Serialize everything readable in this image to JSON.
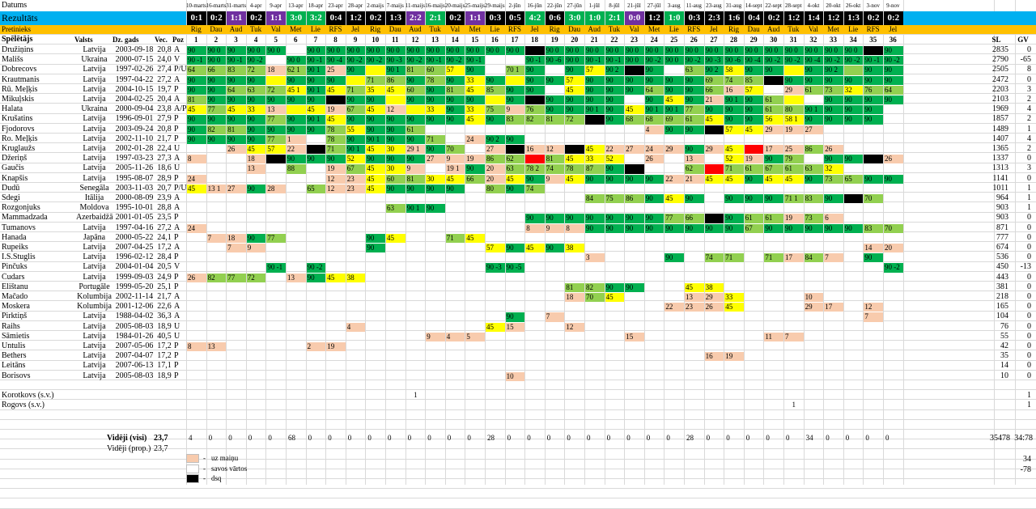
{
  "sheet": {
    "header": {
      "datums_label": "Datums",
      "rezultats_label": "Rezultāts",
      "pretinieks_label": "Pretinieks",
      "dates": [
        "10-marts",
        "16-marts",
        "31-marts",
        "4-apr",
        "9-apr",
        "13-apr",
        "18-apr",
        "23-apr",
        "28-apr",
        "2-maijs",
        "7-maijs",
        "11-maijs",
        "16-maijs",
        "20-maijs",
        "25-maijs",
        "29-maijs",
        "2-jūn",
        "16-jūn",
        "22-jūn",
        "27-jūn",
        "1-jūl",
        "8-jūl",
        "21-jūl",
        "27-jūl",
        "3-aug",
        "11-aug",
        "23-aug",
        "31-aug",
        "14-sept",
        "22-sept",
        "28-sept",
        "4-okt",
        "20-okt",
        "26-okt",
        "3-nov",
        "9-nov"
      ],
      "scores": [
        "0:1",
        "0:2",
        "1:1",
        "0:2",
        "1:1",
        "3:0",
        "3:2",
        "0:4",
        "1:2",
        "0:2",
        "1:3",
        "2:2",
        "2:1",
        "0:2",
        "1:1",
        "0:3",
        "0:5",
        "4:2",
        "0:6",
        "3:0",
        "1:0",
        "2:1",
        "0:0",
        "1:2",
        "1:0",
        "0:3",
        "2:3",
        "1:6",
        "0:4",
        "0:2",
        "1:2",
        "1:4",
        "1:2",
        "1:3",
        "0:2",
        "0:2"
      ],
      "score_colors": [
        "#000000",
        "#000000",
        "#7030a0",
        "#000000",
        "#7030a0",
        "#00b050",
        "#00b050",
        "#000000",
        "#000000",
        "#000000",
        "#000000",
        "#7030a0",
        "#00b050",
        "#000000",
        "#7030a0",
        "#000000",
        "#000000",
        "#00b050",
        "#000000",
        "#00b050",
        "#00b050",
        "#00b050",
        "#7030a0",
        "#000000",
        "#00b050",
        "#000000",
        "#000000",
        "#000000",
        "#000000",
        "#000000",
        "#000000",
        "#000000",
        "#000000",
        "#000000",
        "#000000",
        "#000000"
      ],
      "opponents": [
        "Rig",
        "Dau",
        "Aud",
        "Tuk",
        "Val",
        "Met",
        "Lie",
        "RFS",
        "Jel",
        "Rig",
        "Dau",
        "Aud",
        "Tuk",
        "Val",
        "Met",
        "Lie",
        "RFS",
        "Jel",
        "Rig",
        "Dau",
        "Aud",
        "Tuk",
        "Val",
        "Met",
        "Lie",
        "RFS",
        "Jel",
        "Rig",
        "Dau",
        "Aud",
        "Tuk",
        "Val",
        "Met",
        "Lie",
        "RFS",
        "Jel"
      ],
      "col_player": "Spēlētājs",
      "col_country": "Valsts",
      "col_birth": "Dz. gads",
      "col_age": "Vec.",
      "col_pos": "Poz",
      "col_sl": "SL",
      "col_gv": "GV"
    },
    "players": [
      {
        "name": "Družiņins",
        "country": "Latvija",
        "birth": "2003-09-18",
        "age": "20,8",
        "pos": "A",
        "sl": "2835",
        "gv": "0"
      },
      {
        "name": "Mališs",
        "country": "Ukraina",
        "birth": "2000-07-15",
        "age": "24,0",
        "pos": "V",
        "sl": "2790",
        "gv": "-65"
      },
      {
        "name": "Dobrecovs",
        "country": "Latvija",
        "birth": "1997-02-26",
        "age": "27,4",
        "pos": "P/U",
        "sl": "2505",
        "gv": "8"
      },
      {
        "name": "Krautmanis",
        "country": "Latvija",
        "birth": "1997-04-22",
        "age": "27,2",
        "pos": "A",
        "sl": "2472",
        "gv": "0"
      },
      {
        "name": "Rū. Meļķis",
        "country": "Latvija",
        "birth": "2004-10-15",
        "age": "19,7",
        "pos": "P",
        "sl": "2203",
        "gv": "3"
      },
      {
        "name": "Mikuļskis",
        "country": "Latvija",
        "birth": "2004-02-25",
        "age": "20,4",
        "pos": "A",
        "sl": "2103",
        "gv": "2"
      },
      {
        "name": "Halata",
        "country": "Ukraina",
        "birth": "2000-09-04",
        "age": "23,8",
        "pos": "A/P",
        "sl": "1969",
        "gv": "4"
      },
      {
        "name": "Krušatins",
        "country": "Latvija",
        "birth": "1996-09-01",
        "age": "27,9",
        "pos": "P",
        "sl": "1857",
        "gv": "2"
      },
      {
        "name": "Fjodorovs",
        "country": "Latvija",
        "birth": "2003-09-24",
        "age": "20,8",
        "pos": "P",
        "sl": "1489",
        "gv": "1"
      },
      {
        "name": "Ro. Meļķis",
        "country": "Latvija",
        "birth": "2002-11-10",
        "age": "21,7",
        "pos": "P",
        "sl": "1407",
        "gv": "4"
      },
      {
        "name": "Kruglaužs",
        "country": "Latvija",
        "birth": "2002-01-28",
        "age": "22,4",
        "pos": "U",
        "sl": "1365",
        "gv": "2"
      },
      {
        "name": "Džeriņš",
        "country": "Latvija",
        "birth": "1997-03-23",
        "age": "27,3",
        "pos": "A",
        "sl": "1337",
        "gv": "0"
      },
      {
        "name": "Gaučis",
        "country": "Latvija",
        "birth": "2005-11-26",
        "age": "18,6",
        "pos": "U",
        "sl": "1313",
        "gv": "3"
      },
      {
        "name": "Knapšis",
        "country": "Latvija",
        "birth": "1995-08-07",
        "age": "28,9",
        "pos": "P",
        "sl": "1141",
        "gv": "0"
      },
      {
        "name": "Dudū",
        "country": "Senegāla",
        "birth": "2003-11-03",
        "age": "20,7",
        "pos": "P/U",
        "sl": "1011",
        "gv": "1"
      },
      {
        "name": "Sdegi",
        "country": "Itālija",
        "birth": "2000-08-09",
        "age": "23,9",
        "pos": "A",
        "sl": "964",
        "gv": "1"
      },
      {
        "name": "Rozgonjuks",
        "country": "Moldova",
        "birth": "1995-10-01",
        "age": "28,8",
        "pos": "A",
        "sl": "903",
        "gv": "1"
      },
      {
        "name": "Mammadzada",
        "country": "Azerbaidžāna",
        "birth": "2001-01-05",
        "age": "23,5",
        "pos": "P",
        "sl": "903",
        "gv": "0"
      },
      {
        "name": "Tumanovs",
        "country": "Latvija",
        "birth": "1997-04-16",
        "age": "27,2",
        "pos": "A",
        "sl": "871",
        "gv": "0"
      },
      {
        "name": "Hanada",
        "country": "Japāna",
        "birth": "2000-05-22",
        "age": "24,1",
        "pos": "P",
        "sl": "777",
        "gv": "0"
      },
      {
        "name": "Rupeiks",
        "country": "Latvija",
        "birth": "2007-04-25",
        "age": "17,2",
        "pos": "A",
        "sl": "674",
        "gv": "0"
      },
      {
        "name": "I.S.Stuglis",
        "country": "Latvija",
        "birth": "1996-02-12",
        "age": "28,4",
        "pos": "P",
        "sl": "536",
        "gv": "0"
      },
      {
        "name": "Pinčuks",
        "country": "Latvija",
        "birth": "2004-01-04",
        "age": "20,5",
        "pos": "V",
        "sl": "450",
        "gv": "-13"
      },
      {
        "name": "Čudars",
        "country": "Latvija",
        "birth": "1999-09-03",
        "age": "24,9",
        "pos": "P",
        "sl": "443",
        "gv": "0"
      },
      {
        "name": "Elištanu",
        "country": "Portugāle",
        "birth": "1999-05-20",
        "age": "25,1",
        "pos": "P",
        "sl": "381",
        "gv": "0"
      },
      {
        "name": "Mačado",
        "country": "Kolumbija",
        "birth": "2002-11-14",
        "age": "21,7",
        "pos": "A",
        "sl": "218",
        "gv": "0"
      },
      {
        "name": "Moskera",
        "country": "Kolumbija",
        "birth": "2001-12-06",
        "age": "22,6",
        "pos": "A",
        "sl": "165",
        "gv": "0"
      },
      {
        "name": "Pirktiņš",
        "country": "Latvija",
        "birth": "1988-04-02",
        "age": "36,3",
        "pos": "A",
        "sl": "104",
        "gv": "0"
      },
      {
        "name": "Raihs",
        "country": "Latvija",
        "birth": "2005-08-03",
        "age": "18,9",
        "pos": "U",
        "sl": "76",
        "gv": "0"
      },
      {
        "name": "Sāmietis",
        "country": "Latvija",
        "birth": "1984-01-26",
        "age": "40,5",
        "pos": "U",
        "sl": "55",
        "gv": "0"
      },
      {
        "name": "Untulis",
        "country": "Latvija",
        "birth": "2007-05-06",
        "age": "17,2",
        "pos": "P",
        "sl": "42",
        "gv": "0"
      },
      {
        "name": "Bethers",
        "country": "Latvija",
        "birth": "2007-04-07",
        "age": "17,2",
        "pos": "P",
        "sl": "35",
        "gv": "0"
      },
      {
        "name": "Leitāns",
        "country": "Latvija",
        "birth": "2007-06-13",
        "age": "17,1",
        "pos": "P",
        "sl": "14",
        "gv": "0"
      },
      {
        "name": "Borisovs",
        "country": "Latvija",
        "birth": "2005-08-03",
        "age": "18,9",
        "pos": "P",
        "sl": "10",
        "gv": "0"
      }
    ],
    "extra_rows": [
      {
        "name": "Korotkovs (s.v.)",
        "gv": "1"
      },
      {
        "name": "Rogovs (s.v.)",
        "gv": "1"
      }
    ],
    "extra_marks": [
      {
        "row": 0,
        "col": 11,
        "v": "1"
      },
      {
        "row": 1,
        "col": 30,
        "v": "1"
      }
    ],
    "averages": {
      "all_label": "Vidēji (visi)",
      "all_value": "23,7",
      "prop_label": "Vidēji (prop.)",
      "prop_value": "23,7",
      "per_match": [
        "4",
        "0",
        "0",
        "0",
        "0",
        "68",
        "0",
        "0",
        "0",
        "0",
        "0",
        "0",
        "0",
        "0",
        "0",
        "28",
        "0",
        "0",
        "0",
        "0",
        "0",
        "0",
        "0",
        "0",
        "0",
        "28",
        "0",
        "0",
        "0",
        "0",
        "0",
        "34",
        "0",
        "0",
        "0",
        "0"
      ],
      "sl_total": "35478",
      "gv_total": "34:78",
      "extra_1": "34",
      "extra_2": "-78"
    },
    "legend": [
      {
        "label": "uz maiņu",
        "color": "#f8cbad"
      },
      {
        "label": "savos vārtos",
        "color": "#ffffff"
      },
      {
        "label": "dsq",
        "color": "#000000"
      }
    ],
    "colors": {
      "header_blue": "#00b0f0",
      "header_orange": "#ffc000",
      "green_full": "#00b050",
      "green_light": "#92d050",
      "yellow": "#ffff00",
      "peach": "#f8cbad",
      "red": "#ff0000",
      "black": "#000000"
    },
    "grid": [
      "90|90 0|90|90 0|90 0|0|90 0|90 0|90 0|90 0|90 0|90 0|90 0|90 0|90 0|90 0|90 0|B|90 0|90 0|90 0|90 0|90 0|90 0|90 0|90 0|90 0|90 0|90 0|90 0|90 0|90 0|90 0|90 0|B|90",
      "90 -1|90 0|90 -1|90 -2|0|90 0|90 -1|90 -4|90 -2|90 -2|90 -3|90 -2|90 -1|90 -2|90 -1|0|0|90 -1|90 -6|90 0|90 -1|90 -1|90 0|90 -2|90 0|90 -2|90 -3|90 -6|90 -4|90 -2|90 -2|90 -4|90 -2|90 -2|90 -1|90 -2",
      "64|66|83|72|18|62 1|90 1|25|90|y|90 1|81|60|57|90|0|70 1|90|0|90|57|90 2|B|90|0|63|90 2|58|90|90|y|90|90 2|g|90|90",
      "90|90|90|90|y|90|90|90|y|71|86|90|78|90|33|90|y|90|90|57|90|90|90|90|90|90|69|74|85|B|90|90|90|90|90|90",
      "90|90|64|63|72|45 1|90 1|45|71|35|45|60|90|81|45|85|90|90|0|45|90|90|90|64|90|90|66|16|57|0|29|61|73|32|76|64",
      "81|90|90|90|90|90|90|B|90|90|y|90|90|90|90|y|90|B|90|90|90|90|0|90|45|90|21|90 1|90|61|y|0|90|90|90|90",
      "45|77|45|33|13|y|45|19|67|45|12|y|33|90|33|75|9|76|90|90|90 1|90|45|90 1|90 1|77|90|90|90|61|80|90 1|90|90|90",
      "90|90|90|90|77|90|90 1|45|90|90|90|90|90|90|45|90|83|82|81|72|B|90|68|68|69|61|45|90|90|56|58 1|90|90|90|90",
      "90|82|81|90|90|90|90|78|55|90|90|61|0|0|0|0|0|0|0|0|0|0|0|4|90|90|B|57|45|29|19|27|0|0|0|0",
      "90|90|90|90|77|1|0|78|90|90 1|90|90|71|0|24|90 2|90|0|0|0|0|0|0|0|0|0|0|0|0|0|0|0|0|0|0",
      "0|0|26|45|57|22|B|71|90 1|45|30|29 1|90|70|0|27|B|16|12|B|45|22|27|24|29|90|29|45|R|17|25|86|26|0|0|0",
      "8|0|0|18|B|90|90|90|52|90|90|90|27|9|19|86|62|R|81|45|33|52|0|26|0|13|0|52|19|90|79|0|90|90|B|26",
      "0|0|0|13|0|88|0|19|67|45|30|9|0|19 1|90|20|63|78 2|74|78|87|90|B|0|0|62|R|71|61|67|61|63|32|0|0|0",
      "24|0|0|0|0|0|0|12|23|45|60|81|30|45|66|20|45|90|9|45|90|90|90|90|22|21|45|45|90|45|45|90|73|65|90|90",
      "45|13 1|27|90|28|0|65|12|23|45|90|90|90|90|0|80|90|74|0|0|0|0|0|0|0|0|0|0|0|0|0|0|0|0|0|0",
      "0|0|0|0|0|0|0|0|0|0|0|0|0|0|0|0|0|0|0|0|84|75|86|90|45|90|0|90|90|90|71 1|83|90|B|70|0",
      "0|0|0|0|0|0|0|0|0|0|63|90 1|90|0|0|0|0|0|0|0|0|0|0|0|0|0|0|0|0|0|0|0|0|0|0|0",
      "0|0|0|0|0|0|0|0|0|0|0|0|0|0|0|0|0|90|90|90|90|90|90|90|77|66|B|90|61|61|19|73|6|0|0|0",
      "24|0|0|0|0|0|0|0|0|0|0|0|0|0|0|0|0|8|9|8|90|90|90|90|90|90|90|90|67|90|90|90|90|90|83|70",
      "0|7|18|90|77|0|0|0|0|90|45|0|0|71|45|0|0|0|0|0|0|0|0|0|0|0|0|0|0|0|0|0|0|0|0|0",
      "0|0|7|9|0|0|0|0|0|90|0|0|0|0|0|57|90|45|90|38|0|0|0|0|0|0|0|0|0|0|0|0|0|0|14|20",
      "0|0|0|0|0|0|0|0|0|0|0|0|0|0|0|0|0|0|0|0|3|0|0|0|90|0|74|71|0|71|17|84|7|0|90|0",
      "0|0|0|0|90 -1|0|90 -2|0|0|0|0|0|0|0|0|90 -3|90 -5|0|0|0|0|0|0|0|0|0|0|0|0|0|0|0|0|0|0|90 -2",
      "26|82|77|72|0|13|90|45|38|0|0|0|0|0|0|0|0|0|0|0|0|0|0|0|0|0|0|0|0|0|0|0|0|0|0|0",
      "0|0|0|0|0|0|0|0|0|0|0|0|0|0|0|0|0|0|0|81|82|90|90|0|0|45|38|0|0|0|0|0|0|0|0|0",
      "0|0|0|0|0|0|0|0|0|0|0|0|0|0|0|0|0|0|0|18|70|45|0|0|0|13|29|33|0|0|0|10|0|0|0|0",
      "0|0|0|0|0|0|0|0|0|0|0|0|0|0|0|0|0|0|0|0|0|0|0|0|22|23|26|45|0|0|0|29|17|0|12|0",
      "0|0|0|0|0|0|0|0|0|0|0|0|0|0|0|0|90|0|7|0|0|0|0|0|0|0|0|0|0|0|0|0|0|0|7|0",
      "0|0|0|0|0|0|0|0|4|0|0|0|0|0|0|45|15|0|0|12|0|0|0|0|0|0|0|0|0|0|0|0|0|0|0|0",
      "0|0|0|0|0|0|0|0|0|0|0|0|9|4|5|0|0|0|0|0|0|0|15|0|0|0|0|0|0|11|7|0|0|0|0|0",
      "8|13|0|0|0|0|2|19|0|0|0|0|0|0|0|0|0|0|0|0|0|0|0|0|0|0|0|0|0|0|0|0|0|0|0|0",
      "0|0|0|0|0|0|0|0|0|0|0|0|0|0|0|0|0|0|0|0|0|0|0|0|0|0|16|19|0|0|0|0|0|0|0|0",
      "0|0|0|0|0|0|0|0|0|0|0|0|0|0|0|0|0|0|0|0|0|0|0|0|0|0|0|0|0|0|0|0|0|0|0|0",
      "0|0|0|0|0|0|0|0|0|0|0|0|0|0|0|0|10|0|0|0|0|0|0|0|0|0|0|0|0|0|0|0|0|0|0|0"
    ]
  }
}
